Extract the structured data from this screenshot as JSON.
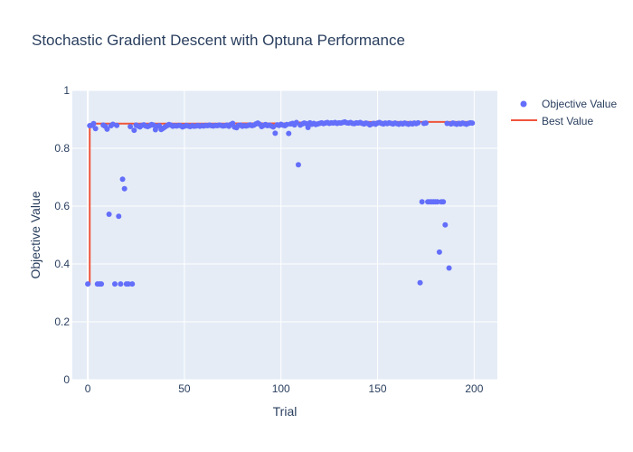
{
  "chart_data": {
    "type": "scatter",
    "title": "Stochastic Gradient Descent with Optuna Performance",
    "xlabel": "Trial",
    "ylabel": "Objective Value",
    "xlim": [
      -8,
      212
    ],
    "ylim": [
      0,
      1
    ],
    "xticks": [
      0,
      50,
      100,
      150,
      200
    ],
    "yticks": [
      0,
      0.2,
      0.4,
      0.6,
      0.8,
      1
    ],
    "ytick_labels": [
      "0",
      "0.2",
      "0.4",
      "0.6",
      "0.8",
      "1"
    ],
    "grid": true,
    "legend_position": "top-right",
    "colors": {
      "objective": "#636efa",
      "best": "#ef553b",
      "plot_bg": "#e5ecf6",
      "grid": "#ffffff",
      "text": "#2a3f5f"
    },
    "series": [
      {
        "name": "Objective Value",
        "mode": "markers",
        "points": [
          [
            0,
            0.331
          ],
          [
            1,
            0.878
          ],
          [
            2,
            0.879
          ],
          [
            3,
            0.885
          ],
          [
            4,
            0.868
          ],
          [
            5,
            0.331
          ],
          [
            6,
            0.331
          ],
          [
            7,
            0.331
          ],
          [
            8,
            0.88
          ],
          [
            9,
            0.876
          ],
          [
            10,
            0.866
          ],
          [
            11,
            0.572
          ],
          [
            12,
            0.878
          ],
          [
            13,
            0.883
          ],
          [
            14,
            0.331
          ],
          [
            15,
            0.879
          ],
          [
            16,
            0.565
          ],
          [
            17,
            0.331
          ],
          [
            18,
            0.693
          ],
          [
            19,
            0.66
          ],
          [
            20,
            0.331
          ],
          [
            21,
            0.331
          ],
          [
            22,
            0.875
          ],
          [
            23,
            0.331
          ],
          [
            24,
            0.862
          ],
          [
            25,
            0.88
          ],
          [
            26,
            0.877
          ],
          [
            27,
            0.874
          ],
          [
            28,
            0.879
          ],
          [
            29,
            0.881
          ],
          [
            30,
            0.877
          ],
          [
            31,
            0.875
          ],
          [
            32,
            0.878
          ],
          [
            33,
            0.882
          ],
          [
            34,
            0.88
          ],
          [
            35,
            0.864
          ],
          [
            36,
            0.876
          ],
          [
            37,
            0.878
          ],
          [
            38,
            0.865
          ],
          [
            39,
            0.869
          ],
          [
            40,
            0.874
          ],
          [
            41,
            0.878
          ],
          [
            42,
            0.882
          ],
          [
            43,
            0.88
          ],
          [
            44,
            0.876
          ],
          [
            45,
            0.878
          ],
          [
            46,
            0.877
          ],
          [
            47,
            0.879
          ],
          [
            48,
            0.878
          ],
          [
            49,
            0.874
          ],
          [
            50,
            0.876
          ],
          [
            51,
            0.879
          ],
          [
            52,
            0.877
          ],
          [
            53,
            0.875
          ],
          [
            54,
            0.878
          ],
          [
            55,
            0.876
          ],
          [
            56,
            0.877
          ],
          [
            57,
            0.879
          ],
          [
            58,
            0.876
          ],
          [
            59,
            0.878
          ],
          [
            60,
            0.877
          ],
          [
            61,
            0.879
          ],
          [
            62,
            0.878
          ],
          [
            63,
            0.88
          ],
          [
            64,
            0.878
          ],
          [
            65,
            0.877
          ],
          [
            66,
            0.879
          ],
          [
            67,
            0.878
          ],
          [
            68,
            0.88
          ],
          [
            69,
            0.879
          ],
          [
            70,
            0.877
          ],
          [
            71,
            0.878
          ],
          [
            72,
            0.88
          ],
          [
            73,
            0.876
          ],
          [
            74,
            0.882
          ],
          [
            75,
            0.886
          ],
          [
            76,
            0.873
          ],
          [
            77,
            0.871
          ],
          [
            78,
            0.879
          ],
          [
            79,
            0.88
          ],
          [
            80,
            0.876
          ],
          [
            81,
            0.878
          ],
          [
            82,
            0.877
          ],
          [
            83,
            0.879
          ],
          [
            84,
            0.881
          ],
          [
            85,
            0.878
          ],
          [
            86,
            0.88
          ],
          [
            87,
            0.884
          ],
          [
            88,
            0.887
          ],
          [
            89,
            0.883
          ],
          [
            90,
            0.875
          ],
          [
            91,
            0.879
          ],
          [
            92,
            0.882
          ],
          [
            93,
            0.878
          ],
          [
            94,
            0.88
          ],
          [
            95,
            0.877
          ],
          [
            96,
            0.874
          ],
          [
            97,
            0.852
          ],
          [
            98,
            0.881
          ],
          [
            99,
            0.879
          ],
          [
            100,
            0.883
          ],
          [
            101,
            0.88
          ],
          [
            102,
            0.878
          ],
          [
            103,
            0.882
          ],
          [
            104,
            0.851
          ],
          [
            105,
            0.884
          ],
          [
            106,
            0.886
          ],
          [
            107,
            0.881
          ],
          [
            108,
            0.889
          ],
          [
            109,
            0.743
          ],
          [
            110,
            0.88
          ],
          [
            111,
            0.884
          ],
          [
            112,
            0.887
          ],
          [
            113,
            0.885
          ],
          [
            114,
            0.872
          ],
          [
            115,
            0.888
          ],
          [
            116,
            0.883
          ],
          [
            117,
            0.886
          ],
          [
            118,
            0.882
          ],
          [
            119,
            0.884
          ],
          [
            120,
            0.886
          ],
          [
            121,
            0.888
          ],
          [
            122,
            0.885
          ],
          [
            123,
            0.887
          ],
          [
            124,
            0.889
          ],
          [
            125,
            0.886
          ],
          [
            126,
            0.888
          ],
          [
            127,
            0.887
          ],
          [
            128,
            0.889
          ],
          [
            129,
            0.886
          ],
          [
            130,
            0.888
          ],
          [
            131,
            0.887
          ],
          [
            132,
            0.889
          ],
          [
            133,
            0.891
          ],
          [
            134,
            0.888
          ],
          [
            135,
            0.887
          ],
          [
            136,
            0.889
          ],
          [
            137,
            0.886
          ],
          [
            138,
            0.885
          ],
          [
            139,
            0.888
          ],
          [
            140,
            0.887
          ],
          [
            141,
            0.889
          ],
          [
            142,
            0.886
          ],
          [
            143,
            0.884
          ],
          [
            144,
            0.887
          ],
          [
            145,
            0.885
          ],
          [
            146,
            0.881
          ],
          [
            147,
            0.884
          ],
          [
            148,
            0.886
          ],
          [
            149,
            0.883
          ],
          [
            150,
            0.887
          ],
          [
            151,
            0.889
          ],
          [
            152,
            0.886
          ],
          [
            153,
            0.884
          ],
          [
            154,
            0.887
          ],
          [
            155,
            0.885
          ],
          [
            156,
            0.888
          ],
          [
            157,
            0.886
          ],
          [
            158,
            0.884
          ],
          [
            159,
            0.887
          ],
          [
            160,
            0.885
          ],
          [
            161,
            0.883
          ],
          [
            162,
            0.886
          ],
          [
            163,
            0.884
          ],
          [
            164,
            0.887
          ],
          [
            165,
            0.885
          ],
          [
            166,
            0.883
          ],
          [
            167,
            0.886
          ],
          [
            168,
            0.884
          ],
          [
            169,
            0.887
          ],
          [
            170,
            0.885
          ],
          [
            171,
            0.888
          ],
          [
            172,
            0.335
          ],
          [
            173,
            0.615
          ],
          [
            174,
            0.886
          ],
          [
            175,
            0.887
          ],
          [
            176,
            0.615
          ],
          [
            177,
            0.615
          ],
          [
            178,
            0.615
          ],
          [
            179,
            0.615
          ],
          [
            180,
            0.615
          ],
          [
            181,
            0.615
          ],
          [
            182,
            0.441
          ],
          [
            183,
            0.615
          ],
          [
            184,
            0.615
          ],
          [
            185,
            0.535
          ],
          [
            186,
            0.886
          ],
          [
            187,
            0.386
          ],
          [
            188,
            0.884
          ],
          [
            189,
            0.887
          ],
          [
            190,
            0.885
          ],
          [
            191,
            0.883
          ],
          [
            192,
            0.886
          ],
          [
            193,
            0.884
          ],
          [
            194,
            0.887
          ],
          [
            195,
            0.885
          ],
          [
            196,
            0.883
          ],
          [
            197,
            0.886
          ],
          [
            198,
            0.888
          ],
          [
            199,
            0.887
          ]
        ]
      },
      {
        "name": "Best Value",
        "mode": "line",
        "points": [
          [
            0,
            0.331
          ],
          [
            1,
            0.878
          ],
          [
            3,
            0.885
          ],
          [
            75,
            0.886
          ],
          [
            108,
            0.889
          ],
          [
            133,
            0.891
          ],
          [
            199,
            0.891
          ]
        ]
      }
    ]
  }
}
